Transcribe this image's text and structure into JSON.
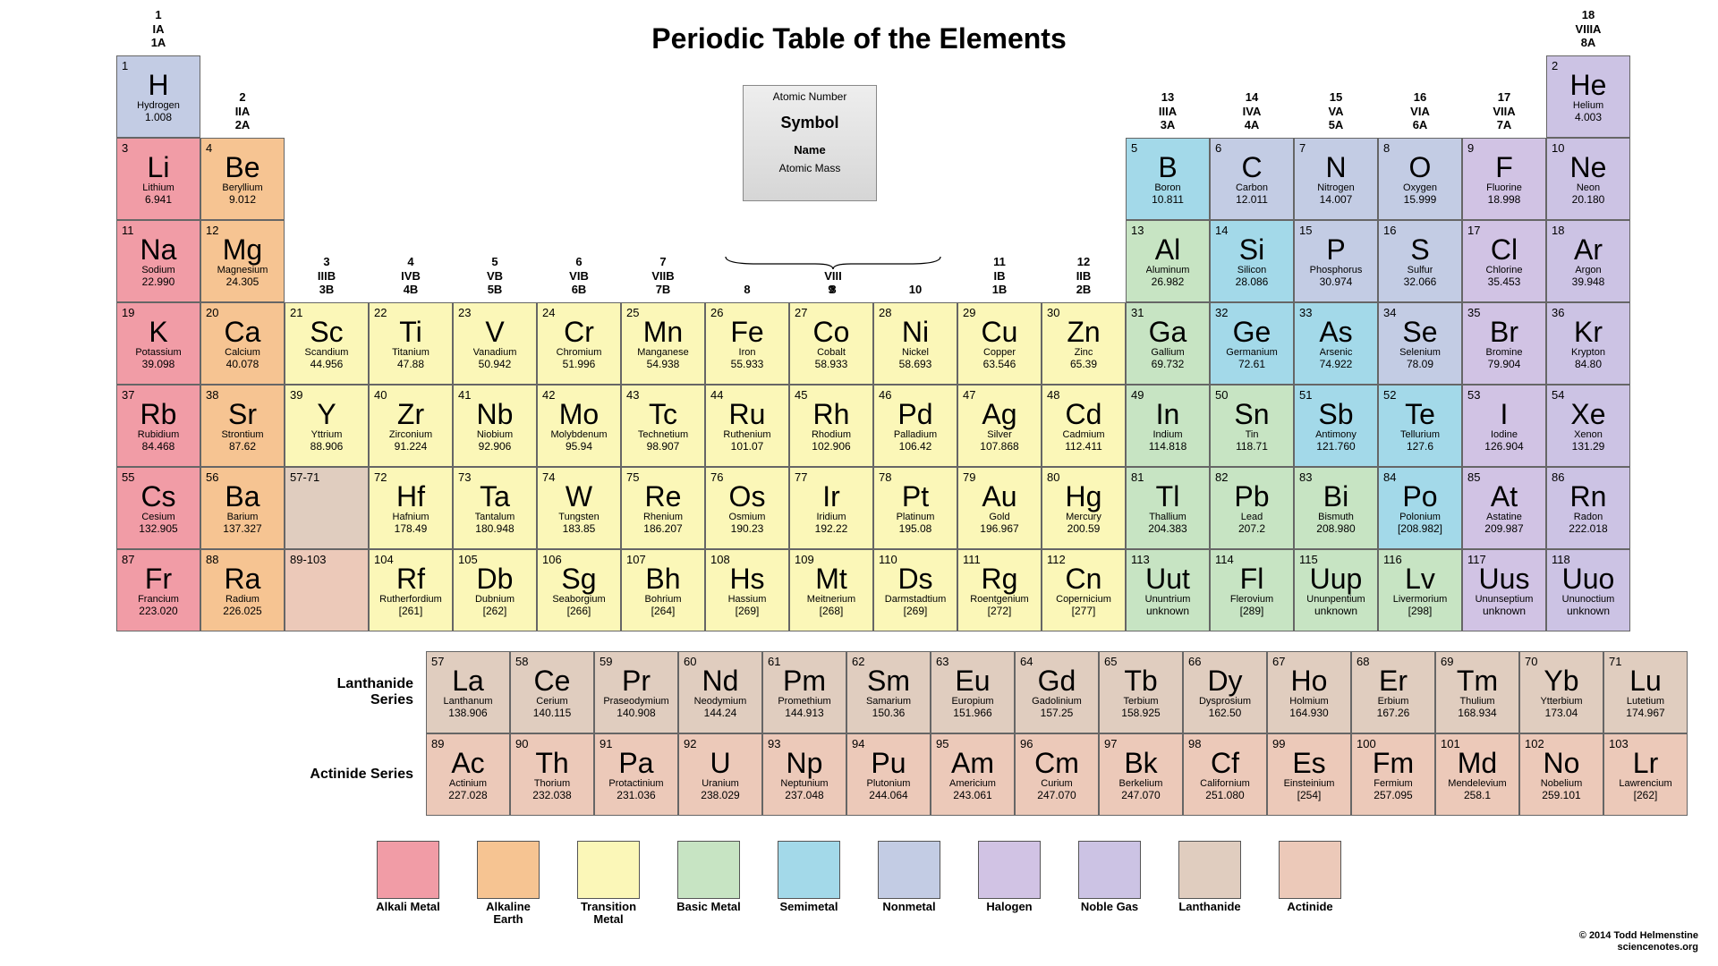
{
  "title": "Periodic Table of the Elements",
  "keybox": {
    "k1": "Atomic Number",
    "k2": "Symbol",
    "k3": "Name",
    "k4": "Atomic  Mass"
  },
  "viii_label": "VIII",
  "viii_sub": "8",
  "credit_line1": "© 2014 Todd Helmenstine",
  "credit_line2": "sciencenotes.org",
  "colors": {
    "alkali": "#f19ca6",
    "alkaline": "#f6c492",
    "transition": "#fbf7b8",
    "basic": "#c7e4c3",
    "semimetal": "#a3d9e9",
    "nonmetal": "#c3cce4",
    "halogen": "#d1c3e4",
    "noble": "#ccc3e4",
    "lanthanide": "#e0cdbf",
    "actinide": "#ecc9b9"
  },
  "group_headers": [
    {
      "col": 1,
      "lines": [
        "1",
        "IA",
        "1A"
      ],
      "above_row": 1
    },
    {
      "col": 2,
      "lines": [
        "2",
        "IIA",
        "2A"
      ],
      "above_row": 2
    },
    {
      "col": 3,
      "lines": [
        "3",
        "IIIB",
        "3B"
      ],
      "above_row": 4
    },
    {
      "col": 4,
      "lines": [
        "4",
        "IVB",
        "4B"
      ],
      "above_row": 4
    },
    {
      "col": 5,
      "lines": [
        "5",
        "VB",
        "5B"
      ],
      "above_row": 4
    },
    {
      "col": 6,
      "lines": [
        "6",
        "VIB",
        "6B"
      ],
      "above_row": 4
    },
    {
      "col": 7,
      "lines": [
        "7",
        "VIIB",
        "7B"
      ],
      "above_row": 4
    },
    {
      "col": 8,
      "lines": [
        "8"
      ],
      "above_row": 4
    },
    {
      "col": 9,
      "lines": [
        "9"
      ],
      "above_row": 4
    },
    {
      "col": 10,
      "lines": [
        "10"
      ],
      "above_row": 4
    },
    {
      "col": 11,
      "lines": [
        "11",
        "IB",
        "1B"
      ],
      "above_row": 4
    },
    {
      "col": 12,
      "lines": [
        "12",
        "IIB",
        "2B"
      ],
      "above_row": 4
    },
    {
      "col": 13,
      "lines": [
        "13",
        "IIIA",
        "3A"
      ],
      "above_row": 2
    },
    {
      "col": 14,
      "lines": [
        "14",
        "IVA",
        "4A"
      ],
      "above_row": 2
    },
    {
      "col": 15,
      "lines": [
        "15",
        "VA",
        "5A"
      ],
      "above_row": 2
    },
    {
      "col": 16,
      "lines": [
        "16",
        "VIA",
        "6A"
      ],
      "above_row": 2
    },
    {
      "col": 17,
      "lines": [
        "17",
        "VIIA",
        "7A"
      ],
      "above_row": 2
    },
    {
      "col": 18,
      "lines": [
        "18",
        "VIIIA",
        "8A"
      ],
      "above_row": 1
    }
  ],
  "elements": [
    {
      "n": 1,
      "s": "H",
      "name": "Hydrogen",
      "m": "1.008",
      "r": 1,
      "c": 1,
      "cat": "nonmetal"
    },
    {
      "n": 2,
      "s": "He",
      "name": "Helium",
      "m": "4.003",
      "r": 1,
      "c": 18,
      "cat": "noble"
    },
    {
      "n": 3,
      "s": "Li",
      "name": "Lithium",
      "m": "6.941",
      "r": 2,
      "c": 1,
      "cat": "alkali"
    },
    {
      "n": 4,
      "s": "Be",
      "name": "Beryllium",
      "m": "9.012",
      "r": 2,
      "c": 2,
      "cat": "alkaline"
    },
    {
      "n": 5,
      "s": "B",
      "name": "Boron",
      "m": "10.811",
      "r": 2,
      "c": 13,
      "cat": "semimetal"
    },
    {
      "n": 6,
      "s": "C",
      "name": "Carbon",
      "m": "12.011",
      "r": 2,
      "c": 14,
      "cat": "nonmetal"
    },
    {
      "n": 7,
      "s": "N",
      "name": "Nitrogen",
      "m": "14.007",
      "r": 2,
      "c": 15,
      "cat": "nonmetal"
    },
    {
      "n": 8,
      "s": "O",
      "name": "Oxygen",
      "m": "15.999",
      "r": 2,
      "c": 16,
      "cat": "nonmetal"
    },
    {
      "n": 9,
      "s": "F",
      "name": "Fluorine",
      "m": "18.998",
      "r": 2,
      "c": 17,
      "cat": "halogen"
    },
    {
      "n": 10,
      "s": "Ne",
      "name": "Neon",
      "m": "20.180",
      "r": 2,
      "c": 18,
      "cat": "noble"
    },
    {
      "n": 11,
      "s": "Na",
      "name": "Sodium",
      "m": "22.990",
      "r": 3,
      "c": 1,
      "cat": "alkali"
    },
    {
      "n": 12,
      "s": "Mg",
      "name": "Magnesium",
      "m": "24.305",
      "r": 3,
      "c": 2,
      "cat": "alkaline"
    },
    {
      "n": 13,
      "s": "Al",
      "name": "Aluminum",
      "m": "26.982",
      "r": 3,
      "c": 13,
      "cat": "basic"
    },
    {
      "n": 14,
      "s": "Si",
      "name": "Silicon",
      "m": "28.086",
      "r": 3,
      "c": 14,
      "cat": "semimetal"
    },
    {
      "n": 15,
      "s": "P",
      "name": "Phosphorus",
      "m": "30.974",
      "r": 3,
      "c": 15,
      "cat": "nonmetal"
    },
    {
      "n": 16,
      "s": "S",
      "name": "Sulfur",
      "m": "32.066",
      "r": 3,
      "c": 16,
      "cat": "nonmetal"
    },
    {
      "n": 17,
      "s": "Cl",
      "name": "Chlorine",
      "m": "35.453",
      "r": 3,
      "c": 17,
      "cat": "halogen"
    },
    {
      "n": 18,
      "s": "Ar",
      "name": "Argon",
      "m": "39.948",
      "r": 3,
      "c": 18,
      "cat": "noble"
    },
    {
      "n": 19,
      "s": "K",
      "name": "Potassium",
      "m": "39.098",
      "r": 4,
      "c": 1,
      "cat": "alkali"
    },
    {
      "n": 20,
      "s": "Ca",
      "name": "Calcium",
      "m": "40.078",
      "r": 4,
      "c": 2,
      "cat": "alkaline"
    },
    {
      "n": 21,
      "s": "Sc",
      "name": "Scandium",
      "m": "44.956",
      "r": 4,
      "c": 3,
      "cat": "transition"
    },
    {
      "n": 22,
      "s": "Ti",
      "name": "Titanium",
      "m": "47.88",
      "r": 4,
      "c": 4,
      "cat": "transition"
    },
    {
      "n": 23,
      "s": "V",
      "name": "Vanadium",
      "m": "50.942",
      "r": 4,
      "c": 5,
      "cat": "transition"
    },
    {
      "n": 24,
      "s": "Cr",
      "name": "Chromium",
      "m": "51.996",
      "r": 4,
      "c": 6,
      "cat": "transition"
    },
    {
      "n": 25,
      "s": "Mn",
      "name": "Manganese",
      "m": "54.938",
      "r": 4,
      "c": 7,
      "cat": "transition"
    },
    {
      "n": 26,
      "s": "Fe",
      "name": "Iron",
      "m": "55.933",
      "r": 4,
      "c": 8,
      "cat": "transition"
    },
    {
      "n": 27,
      "s": "Co",
      "name": "Cobalt",
      "m": "58.933",
      "r": 4,
      "c": 9,
      "cat": "transition"
    },
    {
      "n": 28,
      "s": "Ni",
      "name": "Nickel",
      "m": "58.693",
      "r": 4,
      "c": 10,
      "cat": "transition"
    },
    {
      "n": 29,
      "s": "Cu",
      "name": "Copper",
      "m": "63.546",
      "r": 4,
      "c": 11,
      "cat": "transition"
    },
    {
      "n": 30,
      "s": "Zn",
      "name": "Zinc",
      "m": "65.39",
      "r": 4,
      "c": 12,
      "cat": "transition"
    },
    {
      "n": 31,
      "s": "Ga",
      "name": "Gallium",
      "m": "69.732",
      "r": 4,
      "c": 13,
      "cat": "basic"
    },
    {
      "n": 32,
      "s": "Ge",
      "name": "Germanium",
      "m": "72.61",
      "r": 4,
      "c": 14,
      "cat": "semimetal"
    },
    {
      "n": 33,
      "s": "As",
      "name": "Arsenic",
      "m": "74.922",
      "r": 4,
      "c": 15,
      "cat": "semimetal"
    },
    {
      "n": 34,
      "s": "Se",
      "name": "Selenium",
      "m": "78.09",
      "r": 4,
      "c": 16,
      "cat": "nonmetal"
    },
    {
      "n": 35,
      "s": "Br",
      "name": "Bromine",
      "m": "79.904",
      "r": 4,
      "c": 17,
      "cat": "halogen"
    },
    {
      "n": 36,
      "s": "Kr",
      "name": "Krypton",
      "m": "84.80",
      "r": 4,
      "c": 18,
      "cat": "noble"
    },
    {
      "n": 37,
      "s": "Rb",
      "name": "Rubidium",
      "m": "84.468",
      "r": 5,
      "c": 1,
      "cat": "alkali"
    },
    {
      "n": 38,
      "s": "Sr",
      "name": "Strontium",
      "m": "87.62",
      "r": 5,
      "c": 2,
      "cat": "alkaline"
    },
    {
      "n": 39,
      "s": "Y",
      "name": "Yttrium",
      "m": "88.906",
      "r": 5,
      "c": 3,
      "cat": "transition"
    },
    {
      "n": 40,
      "s": "Zr",
      "name": "Zirconium",
      "m": "91.224",
      "r": 5,
      "c": 4,
      "cat": "transition"
    },
    {
      "n": 41,
      "s": "Nb",
      "name": "Niobium",
      "m": "92.906",
      "r": 5,
      "c": 5,
      "cat": "transition"
    },
    {
      "n": 42,
      "s": "Mo",
      "name": "Molybdenum",
      "m": "95.94",
      "r": 5,
      "c": 6,
      "cat": "transition"
    },
    {
      "n": 43,
      "s": "Tc",
      "name": "Technetium",
      "m": "98.907",
      "r": 5,
      "c": 7,
      "cat": "transition"
    },
    {
      "n": 44,
      "s": "Ru",
      "name": "Ruthenium",
      "m": "101.07",
      "r": 5,
      "c": 8,
      "cat": "transition"
    },
    {
      "n": 45,
      "s": "Rh",
      "name": "Rhodium",
      "m": "102.906",
      "r": 5,
      "c": 9,
      "cat": "transition"
    },
    {
      "n": 46,
      "s": "Pd",
      "name": "Palladium",
      "m": "106.42",
      "r": 5,
      "c": 10,
      "cat": "transition"
    },
    {
      "n": 47,
      "s": "Ag",
      "name": "Silver",
      "m": "107.868",
      "r": 5,
      "c": 11,
      "cat": "transition"
    },
    {
      "n": 48,
      "s": "Cd",
      "name": "Cadmium",
      "m": "112.411",
      "r": 5,
      "c": 12,
      "cat": "transition"
    },
    {
      "n": 49,
      "s": "In",
      "name": "Indium",
      "m": "114.818",
      "r": 5,
      "c": 13,
      "cat": "basic"
    },
    {
      "n": 50,
      "s": "Sn",
      "name": "Tin",
      "m": "118.71",
      "r": 5,
      "c": 14,
      "cat": "basic"
    },
    {
      "n": 51,
      "s": "Sb",
      "name": "Antimony",
      "m": "121.760",
      "r": 5,
      "c": 15,
      "cat": "semimetal"
    },
    {
      "n": 52,
      "s": "Te",
      "name": "Tellurium",
      "m": "127.6",
      "r": 5,
      "c": 16,
      "cat": "semimetal"
    },
    {
      "n": 53,
      "s": "I",
      "name": "Iodine",
      "m": "126.904",
      "r": 5,
      "c": 17,
      "cat": "halogen"
    },
    {
      "n": 54,
      "s": "Xe",
      "name": "Xenon",
      "m": "131.29",
      "r": 5,
      "c": 18,
      "cat": "noble"
    },
    {
      "n": 55,
      "s": "Cs",
      "name": "Cesium",
      "m": "132.905",
      "r": 6,
      "c": 1,
      "cat": "alkali"
    },
    {
      "n": 56,
      "s": "Ba",
      "name": "Barium",
      "m": "137.327",
      "r": 6,
      "c": 2,
      "cat": "alkaline"
    },
    {
      "n": "57-71",
      "s": "",
      "name": "",
      "m": "",
      "r": 6,
      "c": 3,
      "cat": "lanthanide",
      "placeholder": true
    },
    {
      "n": 72,
      "s": "Hf",
      "name": "Hafnium",
      "m": "178.49",
      "r": 6,
      "c": 4,
      "cat": "transition"
    },
    {
      "n": 73,
      "s": "Ta",
      "name": "Tantalum",
      "m": "180.948",
      "r": 6,
      "c": 5,
      "cat": "transition"
    },
    {
      "n": 74,
      "s": "W",
      "name": "Tungsten",
      "m": "183.85",
      "r": 6,
      "c": 6,
      "cat": "transition"
    },
    {
      "n": 75,
      "s": "Re",
      "name": "Rhenium",
      "m": "186.207",
      "r": 6,
      "c": 7,
      "cat": "transition"
    },
    {
      "n": 76,
      "s": "Os",
      "name": "Osmium",
      "m": "190.23",
      "r": 6,
      "c": 8,
      "cat": "transition"
    },
    {
      "n": 77,
      "s": "Ir",
      "name": "Iridium",
      "m": "192.22",
      "r": 6,
      "c": 9,
      "cat": "transition"
    },
    {
      "n": 78,
      "s": "Pt",
      "name": "Platinum",
      "m": "195.08",
      "r": 6,
      "c": 10,
      "cat": "transition"
    },
    {
      "n": 79,
      "s": "Au",
      "name": "Gold",
      "m": "196.967",
      "r": 6,
      "c": 11,
      "cat": "transition"
    },
    {
      "n": 80,
      "s": "Hg",
      "name": "Mercury",
      "m": "200.59",
      "r": 6,
      "c": 12,
      "cat": "transition"
    },
    {
      "n": 81,
      "s": "Tl",
      "name": "Thallium",
      "m": "204.383",
      "r": 6,
      "c": 13,
      "cat": "basic"
    },
    {
      "n": 82,
      "s": "Pb",
      "name": "Lead",
      "m": "207.2",
      "r": 6,
      "c": 14,
      "cat": "basic"
    },
    {
      "n": 83,
      "s": "Bi",
      "name": "Bismuth",
      "m": "208.980",
      "r": 6,
      "c": 15,
      "cat": "basic"
    },
    {
      "n": 84,
      "s": "Po",
      "name": "Polonium",
      "m": "[208.982]",
      "r": 6,
      "c": 16,
      "cat": "semimetal"
    },
    {
      "n": 85,
      "s": "At",
      "name": "Astatine",
      "m": "209.987",
      "r": 6,
      "c": 17,
      "cat": "halogen"
    },
    {
      "n": 86,
      "s": "Rn",
      "name": "Radon",
      "m": "222.018",
      "r": 6,
      "c": 18,
      "cat": "noble"
    },
    {
      "n": 87,
      "s": "Fr",
      "name": "Francium",
      "m": "223.020",
      "r": 7,
      "c": 1,
      "cat": "alkali"
    },
    {
      "n": 88,
      "s": "Ra",
      "name": "Radium",
      "m": "226.025",
      "r": 7,
      "c": 2,
      "cat": "alkaline"
    },
    {
      "n": "89-103",
      "s": "",
      "name": "",
      "m": "",
      "r": 7,
      "c": 3,
      "cat": "actinide",
      "placeholder": true
    },
    {
      "n": 104,
      "s": "Rf",
      "name": "Rutherfordium",
      "m": "[261]",
      "r": 7,
      "c": 4,
      "cat": "transition"
    },
    {
      "n": 105,
      "s": "Db",
      "name": "Dubnium",
      "m": "[262]",
      "r": 7,
      "c": 5,
      "cat": "transition"
    },
    {
      "n": 106,
      "s": "Sg",
      "name": "Seaborgium",
      "m": "[266]",
      "r": 7,
      "c": 6,
      "cat": "transition"
    },
    {
      "n": 107,
      "s": "Bh",
      "name": "Bohrium",
      "m": "[264]",
      "r": 7,
      "c": 7,
      "cat": "transition"
    },
    {
      "n": 108,
      "s": "Hs",
      "name": "Hassium",
      "m": "[269]",
      "r": 7,
      "c": 8,
      "cat": "transition"
    },
    {
      "n": 109,
      "s": "Mt",
      "name": "Meitnerium",
      "m": "[268]",
      "r": 7,
      "c": 9,
      "cat": "transition"
    },
    {
      "n": 110,
      "s": "Ds",
      "name": "Darmstadtium",
      "m": "[269]",
      "r": 7,
      "c": 10,
      "cat": "transition"
    },
    {
      "n": 111,
      "s": "Rg",
      "name": "Roentgenium",
      "m": "[272]",
      "r": 7,
      "c": 11,
      "cat": "transition"
    },
    {
      "n": 112,
      "s": "Cn",
      "name": "Copernicium",
      "m": "[277]",
      "r": 7,
      "c": 12,
      "cat": "transition"
    },
    {
      "n": 113,
      "s": "Uut",
      "name": "Ununtrium",
      "m": "unknown",
      "r": 7,
      "c": 13,
      "cat": "basic"
    },
    {
      "n": 114,
      "s": "Fl",
      "name": "Flerovium",
      "m": "[289]",
      "r": 7,
      "c": 14,
      "cat": "basic"
    },
    {
      "n": 115,
      "s": "Uup",
      "name": "Ununpentium",
      "m": "unknown",
      "r": 7,
      "c": 15,
      "cat": "basic"
    },
    {
      "n": 116,
      "s": "Lv",
      "name": "Livermorium",
      "m": "[298]",
      "r": 7,
      "c": 16,
      "cat": "basic"
    },
    {
      "n": 117,
      "s": "Uus",
      "name": "Ununseptium",
      "m": "unknown",
      "r": 7,
      "c": 17,
      "cat": "halogen"
    },
    {
      "n": 118,
      "s": "Uuo",
      "name": "Ununoctium",
      "m": "unknown",
      "r": 7,
      "c": 18,
      "cat": "noble"
    }
  ],
  "lanthanides": [
    {
      "n": 57,
      "s": "La",
      "name": "Lanthanum",
      "m": "138.906"
    },
    {
      "n": 58,
      "s": "Ce",
      "name": "Cerium",
      "m": "140.115"
    },
    {
      "n": 59,
      "s": "Pr",
      "name": "Praseodymium",
      "m": "140.908"
    },
    {
      "n": 60,
      "s": "Nd",
      "name": "Neodymium",
      "m": "144.24"
    },
    {
      "n": 61,
      "s": "Pm",
      "name": "Promethium",
      "m": "144.913"
    },
    {
      "n": 62,
      "s": "Sm",
      "name": "Samarium",
      "m": "150.36"
    },
    {
      "n": 63,
      "s": "Eu",
      "name": "Europium",
      "m": "151.966"
    },
    {
      "n": 64,
      "s": "Gd",
      "name": "Gadolinium",
      "m": "157.25"
    },
    {
      "n": 65,
      "s": "Tb",
      "name": "Terbium",
      "m": "158.925"
    },
    {
      "n": 66,
      "s": "Dy",
      "name": "Dysprosium",
      "m": "162.50"
    },
    {
      "n": 67,
      "s": "Ho",
      "name": "Holmium",
      "m": "164.930"
    },
    {
      "n": 68,
      "s": "Er",
      "name": "Erbium",
      "m": "167.26"
    },
    {
      "n": 69,
      "s": "Tm",
      "name": "Thulium",
      "m": "168.934"
    },
    {
      "n": 70,
      "s": "Yb",
      "name": "Ytterbium",
      "m": "173.04"
    },
    {
      "n": 71,
      "s": "Lu",
      "name": "Lutetium",
      "m": "174.967"
    }
  ],
  "actinides": [
    {
      "n": 89,
      "s": "Ac",
      "name": "Actinium",
      "m": "227.028"
    },
    {
      "n": 90,
      "s": "Th",
      "name": "Thorium",
      "m": "232.038"
    },
    {
      "n": 91,
      "s": "Pa",
      "name": "Protactinium",
      "m": "231.036"
    },
    {
      "n": 92,
      "s": "U",
      "name": "Uranium",
      "m": "238.029"
    },
    {
      "n": 93,
      "s": "Np",
      "name": "Neptunium",
      "m": "237.048"
    },
    {
      "n": 94,
      "s": "Pu",
      "name": "Plutonium",
      "m": "244.064"
    },
    {
      "n": 95,
      "s": "Am",
      "name": "Americium",
      "m": "243.061"
    },
    {
      "n": 96,
      "s": "Cm",
      "name": "Curium",
      "m": "247.070"
    },
    {
      "n": 97,
      "s": "Bk",
      "name": "Berkelium",
      "m": "247.070"
    },
    {
      "n": 98,
      "s": "Cf",
      "name": "Californium",
      "m": "251.080"
    },
    {
      "n": 99,
      "s": "Es",
      "name": "Einsteinium",
      "m": "[254]"
    },
    {
      "n": 100,
      "s": "Fm",
      "name": "Fermium",
      "m": "257.095"
    },
    {
      "n": 101,
      "s": "Md",
      "name": "Mendelevium",
      "m": "258.1"
    },
    {
      "n": 102,
      "s": "No",
      "name": "Nobelium",
      "m": "259.101"
    },
    {
      "n": 103,
      "s": "Lr",
      "name": "Lawrencium",
      "m": "[262]"
    }
  ],
  "series_labels": {
    "lanth": "Lanthanide Series",
    "act": "Actinide Series"
  },
  "legend": [
    {
      "label": "Alkali Metal",
      "cat": "alkali"
    },
    {
      "label": "Alkaline Earth",
      "cat": "alkaline"
    },
    {
      "label": "Transition Metal",
      "cat": "transition"
    },
    {
      "label": "Basic Metal",
      "cat": "basic"
    },
    {
      "label": "Semimetal",
      "cat": "semimetal"
    },
    {
      "label": "Nonmetal",
      "cat": "nonmetal"
    },
    {
      "label": "Halogen",
      "cat": "halogen"
    },
    {
      "label": "Noble Gas",
      "cat": "noble"
    },
    {
      "label": "Lanthanide",
      "cat": "lanthanide"
    },
    {
      "label": "Actinide",
      "cat": "actinide"
    }
  ]
}
